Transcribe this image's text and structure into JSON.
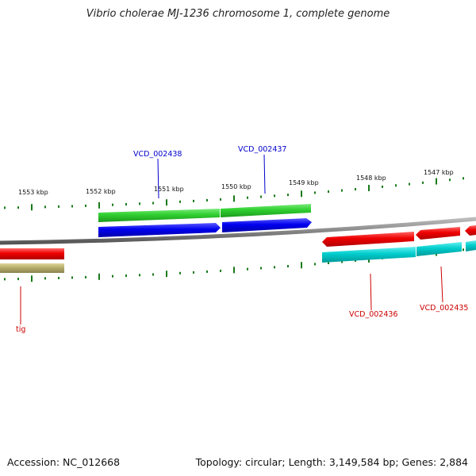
{
  "title": "Vibrio cholerae MJ-1236 chromosome 1, complete genome",
  "footer": {
    "accession": "Accession: NC_012668",
    "summary": "Topology: circular; Length: 3,149,584 bp; Genes: 2,884"
  },
  "ticks": [
    {
      "label": "1553 kbp",
      "pos": 1553
    },
    {
      "label": "1552 kbp",
      "pos": 1552
    },
    {
      "label": "1551 kbp",
      "pos": 1551
    },
    {
      "label": "1550 kbp",
      "pos": 1550
    },
    {
      "label": "1549 kbp",
      "pos": 1549
    },
    {
      "label": "1548 kbp",
      "pos": 1548
    },
    {
      "label": "1547 kbp",
      "pos": 1547
    }
  ],
  "genes": [
    {
      "label": "VCD_002438",
      "color": "#0000cc"
    },
    {
      "label": "VCD_002437",
      "color": "#0000cc"
    },
    {
      "label": "VCD_002436",
      "color": "#cc0000"
    },
    {
      "label": "VCD_002435",
      "color": "#cc0000"
    },
    {
      "label": "tig",
      "color": "#cc0000"
    }
  ],
  "colors": {
    "backbone": "#888888",
    "tick": "#1a7a1a",
    "forward_feature": "#33cc33",
    "forward_cds": "#0000ee",
    "reverse_feature": "#ee0000",
    "reverse_cds": "#00cccc",
    "tig_feature": "#b5ad6a"
  }
}
